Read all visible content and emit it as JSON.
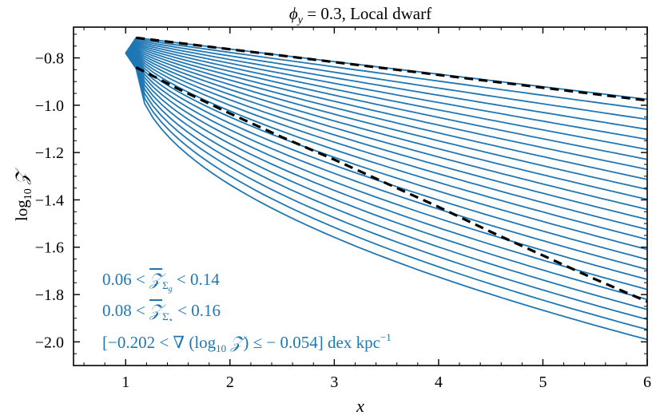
{
  "chart_data": {
    "type": "line",
    "title": "ϕ_y = 0.3, Local dwarf",
    "xlabel": "x",
    "ylabel": "log10 𝒵",
    "xlim": [
      0.5,
      6
    ],
    "ylim": [
      -2.1,
      -0.67
    ],
    "x_ticks": [
      1,
      2,
      3,
      4,
      5,
      6
    ],
    "y_ticks": [
      -0.8,
      -1.0,
      -1.2,
      -1.4,
      -1.6,
      -1.8,
      -2.0
    ],
    "x_tick_labels": [
      "1",
      "2",
      "3",
      "4",
      "5",
      "6"
    ],
    "y_tick_labels": [
      "−0.8",
      "−1.0",
      "−1.2",
      "−1.4",
      "−1.6",
      "−1.8",
      "−2.0"
    ],
    "grid": false,
    "line_color": "#1f77b4",
    "curve_family": {
      "count": 25,
      "x_range": [
        1.0,
        6.0
      ],
      "start_y": -0.78,
      "top_curve": {
        "y_at_1_1": -0.715,
        "y_end": -0.975
      },
      "bottom_curve": {
        "y_at_1_1": -0.845,
        "y_end": -1.99
      }
    },
    "series": [
      {
        "style": "black-dashed",
        "x": [
          1.1,
          6.0
        ],
        "y": [
          -0.715,
          -0.98
        ]
      },
      {
        "style": "black-dashed",
        "x": [
          1.1,
          1.5,
          2.0,
          2.5,
          3.0,
          3.5,
          4.0,
          4.5,
          5.0,
          5.5,
          6.0
        ],
        "y": [
          -0.84,
          -0.93,
          -1.035,
          -1.135,
          -1.23,
          -1.33,
          -1.43,
          -1.535,
          -1.635,
          -1.735,
          -1.83
        ]
      }
    ],
    "annotations": {
      "line1": "0.06 < 𝒵̄_Σg < 0.14",
      "line2": "0.08 < 𝒵̄_Σ̇⋆ < 0.16",
      "line3": "[−0.202 < ∇ (log10 𝒵) ≤ − 0.054] dex kpc⁻¹"
    }
  }
}
